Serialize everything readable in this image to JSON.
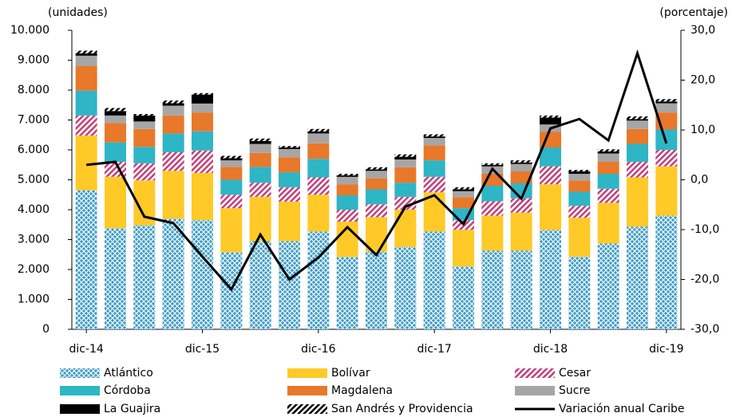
{
  "chart_data": {
    "type": "bar",
    "stacked": true,
    "y_label": "(unidades)",
    "y2_label": "(porcentaje)",
    "categories": [
      "dic-14",
      null,
      null,
      null,
      "dic-15",
      null,
      null,
      null,
      "dic-16",
      null,
      null,
      null,
      "dic-17",
      null,
      null,
      null,
      "dic-18",
      null,
      null,
      null,
      "dic-19"
    ],
    "ylim": [
      0,
      10000
    ],
    "yticks": [
      0,
      {
        "value": 1000,
        "label": "1.000"
      },
      {
        "value": 2000,
        "label": "2.000"
      },
      {
        "value": 3000,
        "label": "3.000"
      },
      {
        "value": 4000,
        "label": "4.000"
      },
      {
        "value": 5000,
        "label": "5.000"
      },
      {
        "value": 6000,
        "label": "6.000"
      },
      {
        "value": 7000,
        "label": "7.000"
      },
      {
        "value": 8000,
        "label": "8.000"
      },
      {
        "value": 9000,
        "label": "9.000"
      },
      {
        "value": 10000,
        "label": "10.000"
      }
    ],
    "y2lim": [
      -30,
      30
    ],
    "y2ticks": [
      {
        "value": -30,
        "label": "-30,0"
      },
      {
        "value": -20,
        "label": "-20,0"
      },
      {
        "value": -10,
        "label": "-10,0"
      },
      {
        "value": 0,
        "label": "0,0"
      },
      {
        "value": 10,
        "label": "10,0"
      },
      {
        "value": 20,
        "label": "20,0"
      },
      {
        "value": 30,
        "label": "30,0"
      }
    ],
    "series": [
      {
        "name": "Atlántico",
        "color": "#3d9cc6",
        "pattern": "crosshatch",
        "values": [
          4650,
          3380,
          3480,
          3700,
          3650,
          2580,
          2950,
          2950,
          3270,
          2420,
          2600,
          2750,
          3270,
          2100,
          2630,
          2630,
          3320,
          2430,
          2870,
          3430,
          3800
        ]
      },
      {
        "name": "Bolívar",
        "color": "#ffc928",
        "values": [
          1830,
          1720,
          1500,
          1600,
          1580,
          1470,
          1480,
          1320,
          1230,
          1180,
          1150,
          1250,
          1310,
          1230,
          1170,
          1270,
          1530,
          1300,
          1360,
          1650,
          1650
        ]
      },
      {
        "name": "Cesar",
        "color": "#c2407a",
        "pattern": "stripes",
        "values": [
          670,
          500,
          570,
          620,
          750,
          450,
          470,
          480,
          580,
          400,
          430,
          430,
          520,
          320,
          480,
          480,
          600,
          400,
          470,
          520,
          550
        ]
      },
      {
        "name": "Córdoba",
        "color": "#2eb5c6",
        "values": [
          830,
          650,
          550,
          630,
          640,
          500,
          530,
          500,
          620,
          480,
          500,
          470,
          550,
          400,
          520,
          500,
          630,
          470,
          500,
          600,
          680
        ]
      },
      {
        "name": "Magdalena",
        "color": "#e8782a",
        "values": [
          820,
          650,
          600,
          600,
          630,
          430,
          470,
          500,
          520,
          370,
          370,
          520,
          500,
          370,
          400,
          400,
          520,
          380,
          400,
          500,
          570
        ]
      },
      {
        "name": "Sucre",
        "color": "#a6a6a6",
        "values": [
          350,
          250,
          250,
          330,
          300,
          220,
          300,
          280,
          330,
          250,
          250,
          260,
          250,
          200,
          250,
          250,
          250,
          220,
          280,
          280,
          310
        ]
      },
      {
        "name": "La Guajira",
        "color": "#000000",
        "values": [
          80,
          150,
          200,
          80,
          300,
          70,
          100,
          50,
          70,
          50,
          50,
          90,
          50,
          60,
          50,
          50,
          230,
          80,
          70,
          50,
          60
        ]
      },
      {
        "name": "San Andrés y Providencia",
        "color": "#000000",
        "pattern": "stripes",
        "values": [
          90,
          100,
          50,
          90,
          50,
          80,
          80,
          50,
          80,
          50,
          70,
          80,
          70,
          70,
          50,
          70,
          70,
          50,
          70,
          90,
          80
        ]
      },
      {
        "name": "Variación anual Caribe",
        "type": "line",
        "axis": "y2",
        "color": "#000000",
        "values": [
          3.0,
          3.6,
          -7.4,
          -8.7,
          -15.4,
          -22.0,
          -11.0,
          -20.0,
          -15.6,
          -9.5,
          -15.1,
          -5.4,
          -3.1,
          -8.9,
          2.2,
          -3.8,
          10.3,
          12.2,
          7.9,
          25.4,
          7.3
        ]
      }
    ]
  }
}
